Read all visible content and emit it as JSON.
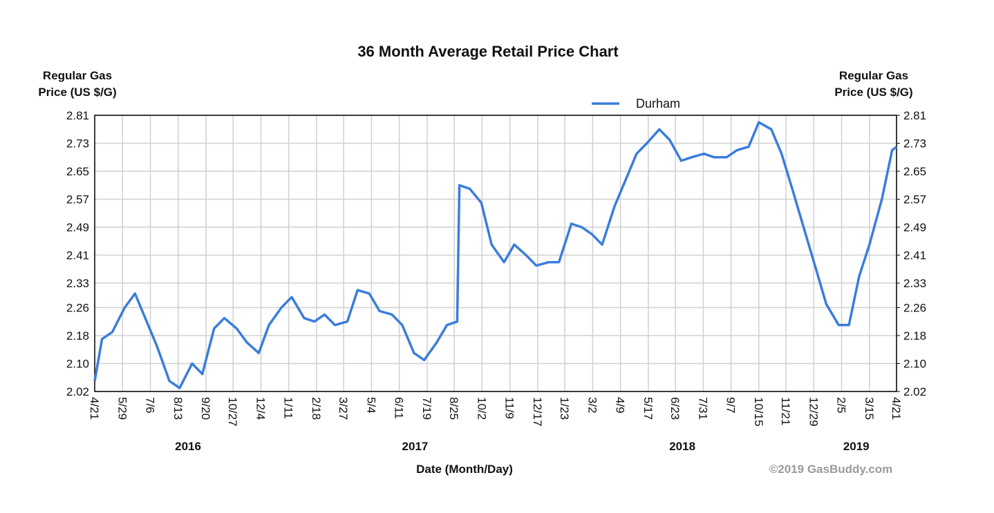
{
  "chart_data": {
    "type": "line",
    "title": "36 Month Average Retail Price Chart",
    "y_label": [
      "Regular Gas",
      "Price (US $/G)"
    ],
    "y2_label": [
      "Regular Gas",
      "Price (US $/G)"
    ],
    "x_label": "Date (Month/Day)",
    "x_year_labels": [
      "2016",
      "2017",
      "2018",
      "2019"
    ],
    "credit": "©2019 GasBuddy.com",
    "legend": "top",
    "grid": true,
    "xlim": [
      "2016-04-21",
      "2019-04-21"
    ],
    "xticks": [
      {
        "value": "2016-04-21",
        "label": "4/21"
      },
      {
        "value": "2016-05-29",
        "label": "5/29"
      },
      {
        "value": "2016-07-06",
        "label": "7/6"
      },
      {
        "value": "2016-08-13",
        "label": "8/13"
      },
      {
        "value": "2016-09-20",
        "label": "9/20"
      },
      {
        "value": "2016-10-27",
        "label": "10/27"
      },
      {
        "value": "2016-12-04",
        "label": "12/4"
      },
      {
        "value": "2017-01-11",
        "label": "1/11"
      },
      {
        "value": "2017-02-18",
        "label": "2/18"
      },
      {
        "value": "2017-03-27",
        "label": "3/27"
      },
      {
        "value": "2017-05-04",
        "label": "5/4"
      },
      {
        "value": "2017-06-11",
        "label": "6/11"
      },
      {
        "value": "2017-07-19",
        "label": "7/19"
      },
      {
        "value": "2017-08-25",
        "label": "8/25"
      },
      {
        "value": "2017-10-02",
        "label": "10/2"
      },
      {
        "value": "2017-11-09",
        "label": "11/9"
      },
      {
        "value": "2017-12-17",
        "label": "12/17"
      },
      {
        "value": "2018-01-23",
        "label": "1/23"
      },
      {
        "value": "2018-03-02",
        "label": "3/2"
      },
      {
        "value": "2018-04-09",
        "label": "4/9"
      },
      {
        "value": "2018-05-17",
        "label": "5/17"
      },
      {
        "value": "2018-06-23",
        "label": "6/23"
      },
      {
        "value": "2018-07-31",
        "label": "7/31"
      },
      {
        "value": "2018-09-07",
        "label": "9/7"
      },
      {
        "value": "2018-10-15",
        "label": "10/15"
      },
      {
        "value": "2018-11-21",
        "label": "11/21"
      },
      {
        "value": "2018-12-29",
        "label": "12/29"
      },
      {
        "value": "2019-02-05",
        "label": "2/5"
      },
      {
        "value": "2019-03-15",
        "label": "3/15"
      },
      {
        "value": "2019-04-21",
        "label": "4/21"
      }
    ],
    "ylim": [
      2.02,
      2.81
    ],
    "yticks": [
      2.02,
      {
        "value": 2.1,
        "label": "2.10"
      },
      2.18,
      2.26,
      2.33,
      2.41,
      2.49,
      2.57,
      2.65,
      2.73,
      2.81
    ],
    "y2lim": [
      2.02,
      2.81
    ],
    "y2ticks": [
      2.02,
      {
        "value": 2.1,
        "label": "2.10"
      },
      2.18,
      2.26,
      2.33,
      2.41,
      2.49,
      2.57,
      2.65,
      2.73,
      2.81
    ],
    "x": [
      "2016-04-21",
      "2016-05-01",
      "2016-05-15",
      "2016-06-01",
      "2016-06-15",
      "2016-07-01",
      "2016-07-15",
      "2016-08-01",
      "2016-08-15",
      "2016-09-01",
      "2016-09-15",
      "2016-10-01",
      "2016-10-15",
      "2016-11-01",
      "2016-11-15",
      "2016-12-01",
      "2016-12-15",
      "2017-01-01",
      "2017-01-15",
      "2017-02-01",
      "2017-02-15",
      "2017-03-01",
      "2017-03-15",
      "2017-04-01",
      "2017-04-15",
      "2017-05-01",
      "2017-05-15",
      "2017-06-01",
      "2017-06-15",
      "2017-07-01",
      "2017-07-15",
      "2017-08-01",
      "2017-08-15",
      "2017-08-29",
      "2017-09-01",
      "2017-09-15",
      "2017-10-01",
      "2017-10-15",
      "2017-11-01",
      "2017-11-15",
      "2017-12-01",
      "2017-12-15",
      "2018-01-01",
      "2018-01-15",
      "2018-02-01",
      "2018-02-15",
      "2018-03-01",
      "2018-03-15",
      "2018-04-01",
      "2018-04-15",
      "2018-05-01",
      "2018-05-15",
      "2018-06-01",
      "2018-06-15",
      "2018-07-01",
      "2018-07-15",
      "2018-08-01",
      "2018-08-15",
      "2018-09-01",
      "2018-09-15",
      "2018-10-01",
      "2018-10-15",
      "2018-11-01",
      "2018-11-15",
      "2018-12-01",
      "2018-12-15",
      "2019-01-01",
      "2019-01-15",
      "2019-02-01",
      "2019-02-15",
      "2019-03-01",
      "2019-03-15",
      "2019-04-01",
      "2019-04-15",
      "2019-04-21"
    ],
    "series": [
      {
        "name": "Durham",
        "color": "#3a7ddc",
        "values": [
          2.05,
          2.17,
          2.19,
          2.26,
          2.3,
          2.22,
          2.15,
          2.05,
          2.03,
          2.1,
          2.07,
          2.2,
          2.23,
          2.2,
          2.16,
          2.13,
          2.21,
          2.26,
          2.29,
          2.23,
          2.22,
          2.24,
          2.21,
          2.22,
          2.31,
          2.3,
          2.25,
          2.24,
          2.21,
          2.13,
          2.11,
          2.16,
          2.21,
          2.22,
          2.61,
          2.6,
          2.56,
          2.44,
          2.39,
          2.44,
          2.41,
          2.38,
          2.39,
          2.39,
          2.5,
          2.49,
          2.47,
          2.44,
          2.55,
          2.62,
          2.7,
          2.73,
          2.77,
          2.74,
          2.68,
          2.69,
          2.7,
          2.69,
          2.69,
          2.71,
          2.72,
          2.79,
          2.77,
          2.7,
          2.59,
          2.49,
          2.37,
          2.27,
          2.21,
          2.21,
          2.35,
          2.44,
          2.57,
          2.71,
          2.72
        ]
      }
    ]
  }
}
